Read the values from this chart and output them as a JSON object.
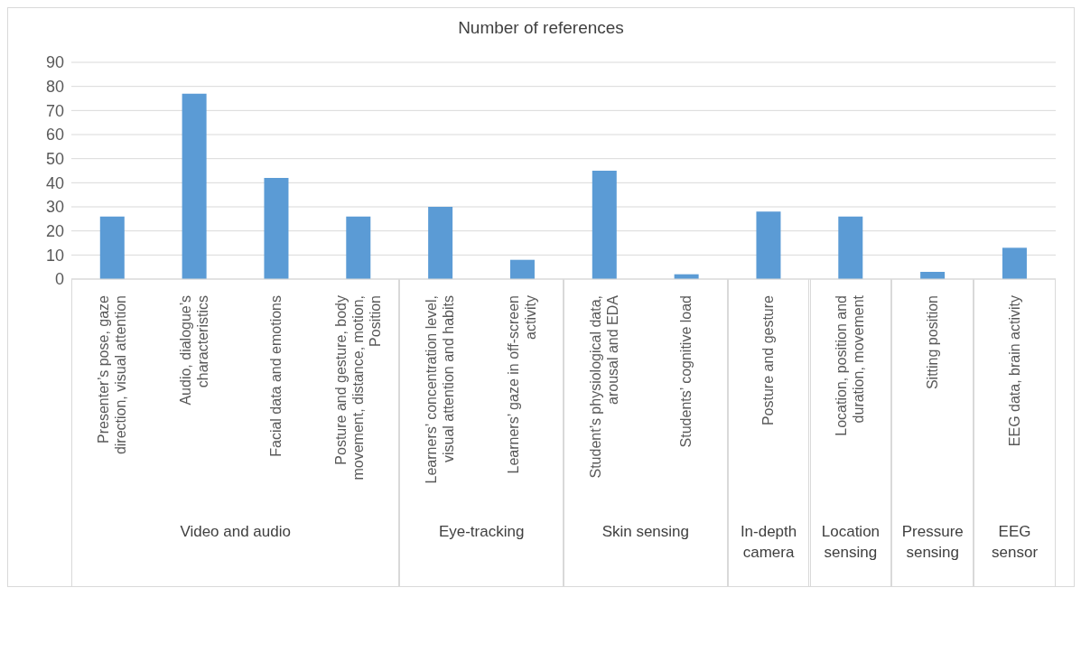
{
  "chart_data": {
    "type": "bar",
    "title": "Number of references",
    "categories": [
      "Presenter’s pose, gaze direction, visual attention",
      "Audio, dialogue’s characteristics",
      "Facial data and emotions",
      "Posture and gesture, body movement, distance, motion, Position",
      "Learners’ concentration level, visual attention and habits",
      "Learners’ gaze in off-screen activity",
      "Student’s physiological data, arousal and EDA",
      "Students’ cognitive load",
      "Posture and gesture",
      "Location, position and duration, movement",
      "Sitting position",
      "EEG data, brain activity"
    ],
    "values": [
      26,
      77,
      42,
      26,
      30,
      8,
      45,
      2,
      28,
      26,
      3,
      13
    ],
    "color": "#5b9bd5",
    "ylim": [
      0,
      90
    ],
    "yticks": [
      0,
      10,
      20,
      30,
      40,
      50,
      60,
      70,
      80,
      90
    ],
    "grid": "y",
    "annotations": [
      "Video and audio",
      "Eye-tracking",
      "Skin sensing",
      "In-depth camera",
      "Location sensing",
      "Pressure sensing",
      "EEG sensor"
    ]
  }
}
